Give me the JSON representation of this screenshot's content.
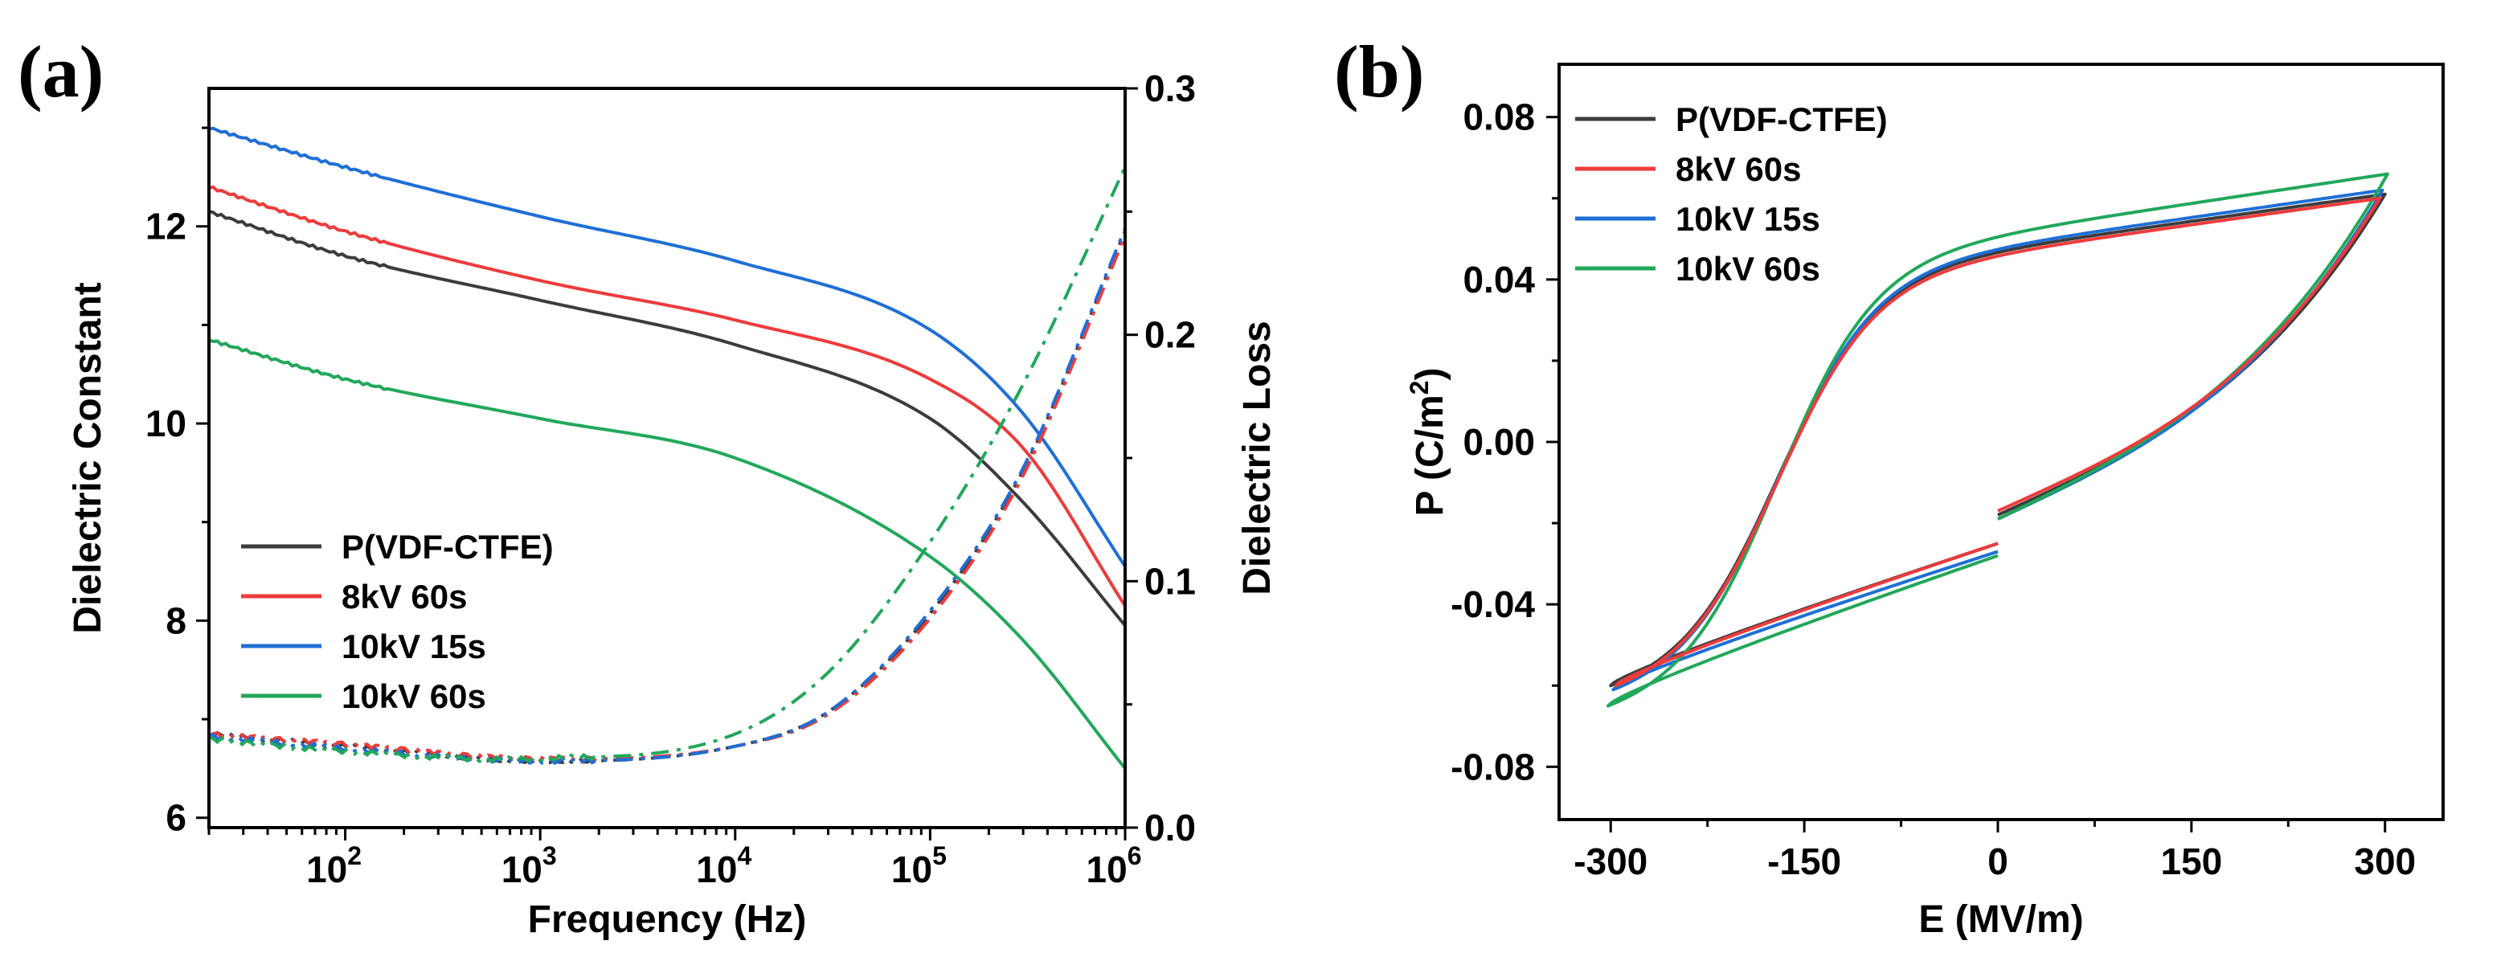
{
  "panel_labels": {
    "a": "(a)",
    "b": "(b)"
  },
  "colors": {
    "P(VDF-CTFE)": "#3c3c3c",
    "8kV 60s": "#ee3b3b",
    "10kV 15s": "#1f6fd6",
    "10kV 60s": "#21a85a"
  },
  "chart_data": [
    {
      "id": "a",
      "type": "line",
      "xscale": "log",
      "xlabel": "Frequency (Hz)",
      "ylabel": "Dielectric Constant",
      "y2label": "Dielectric Loss",
      "xlim": [
        20,
        1000000
      ],
      "ylim": [
        5.9,
        13.4
      ],
      "y2lim": [
        0,
        0.3
      ],
      "xticks": [
        {
          "value": 100,
          "base": "10",
          "exp": "2"
        },
        {
          "value": 1000,
          "base": "10",
          "exp": "3"
        },
        {
          "value": 10000,
          "base": "10",
          "exp": "4"
        },
        {
          "value": 100000,
          "base": "10",
          "exp": "5"
        },
        {
          "value": 1000000,
          "base": "10",
          "exp": "6"
        }
      ],
      "yticks": [
        "6",
        "8",
        "10",
        "12"
      ],
      "y2ticks": [
        "0.0",
        "0.1",
        "0.2",
        "0.3"
      ],
      "legend_position": "bottom-left",
      "legend": [
        "P(VDF-CTFE)",
        "8kV 60s",
        "10kV 15s",
        "10kV 60s"
      ],
      "series_constant": [
        {
          "name": "P(VDF-CTFE)",
          "x": [
            20,
            100,
            1000,
            10000,
            100000,
            300000,
            1000000
          ],
          "y": [
            12.15,
            11.7,
            11.25,
            10.8,
            10.05,
            9.2,
            7.95
          ]
        },
        {
          "name": "8kV 60s",
          "x": [
            20,
            100,
            1000,
            10000,
            100000,
            300000,
            1000000
          ],
          "y": [
            12.4,
            11.95,
            11.45,
            11.05,
            10.45,
            9.75,
            8.15
          ]
        },
        {
          "name": "10kV 15s",
          "x": [
            20,
            100,
            1000,
            10000,
            100000,
            300000,
            1000000
          ],
          "y": [
            13.0,
            12.6,
            12.1,
            11.65,
            10.95,
            10.1,
            8.55
          ]
        },
        {
          "name": "10kV 60s",
          "x": [
            20,
            100,
            1000,
            10000,
            100000,
            300000,
            1000000
          ],
          "y": [
            10.85,
            10.45,
            10.05,
            9.65,
            8.65,
            7.8,
            6.5
          ]
        }
      ],
      "series_loss": [
        {
          "name": "P(VDF-CTFE)",
          "x": [
            20,
            100,
            1000,
            10000,
            30000,
            100000,
            300000,
            1000000
          ],
          "y": [
            0.038,
            0.033,
            0.027,
            0.033,
            0.047,
            0.087,
            0.145,
            0.242
          ]
        },
        {
          "name": "8kV 60s",
          "x": [
            20,
            100,
            1000,
            10000,
            30000,
            100000,
            300000,
            1000000
          ],
          "y": [
            0.038,
            0.034,
            0.028,
            0.033,
            0.046,
            0.085,
            0.143,
            0.24
          ]
        },
        {
          "name": "10kV 15s",
          "x": [
            20,
            100,
            1000,
            10000,
            30000,
            100000,
            300000,
            1000000
          ],
          "y": [
            0.037,
            0.032,
            0.027,
            0.033,
            0.047,
            0.088,
            0.146,
            0.243
          ]
        },
        {
          "name": "10kV 60s",
          "x": [
            20,
            100,
            1000,
            10000,
            30000,
            100000,
            300000,
            1000000
          ],
          "y": [
            0.036,
            0.031,
            0.028,
            0.038,
            0.063,
            0.116,
            0.18,
            0.268
          ]
        }
      ]
    },
    {
      "id": "b",
      "type": "line",
      "xlabel": "E (MV/m)",
      "ylabel_base": "P (C/m",
      "ylabel_sup": "2",
      "ylabel_end": ")",
      "xlim": [
        -340,
        345
      ],
      "ylim": [
        -0.093,
        0.093
      ],
      "xticks": [
        "-300",
        "-150",
        "0",
        "150",
        "300"
      ],
      "yticks": [
        "-0.08",
        "-0.04",
        "0.00",
        "0.04",
        "0.08"
      ],
      "legend_position": "top-left",
      "legend": [
        "P(VDF-CTFE)",
        "8kV 60s",
        "10kV 15s",
        "10kV 60s"
      ],
      "loops": [
        {
          "name": "P(VDF-CTFE)",
          "Pmax": 0.061,
          "Pmin": -0.06,
          "Emax": 300,
          "Emin": -300,
          "Pstart": -0.018,
          "Pend": -0.025,
          "Pr": 0.026
        },
        {
          "name": "10kV 15s",
          "Pmax": 0.062,
          "Pmin": -0.061,
          "Emax": 298,
          "Emin": -298,
          "Pstart": -0.019,
          "Pend": -0.027,
          "Pr": 0.027
        },
        {
          "name": "10kV 60s",
          "Pmax": 0.066,
          "Pmin": -0.065,
          "Emax": 302,
          "Emin": -302,
          "Pstart": -0.019,
          "Pend": -0.028,
          "Pr": 0.029
        },
        {
          "name": "8kV 60s",
          "Pmax": 0.06,
          "Pmin": -0.06,
          "Emax": 296,
          "Emin": -296,
          "Pstart": -0.017,
          "Pend": -0.025,
          "Pr": 0.025
        }
      ]
    }
  ]
}
